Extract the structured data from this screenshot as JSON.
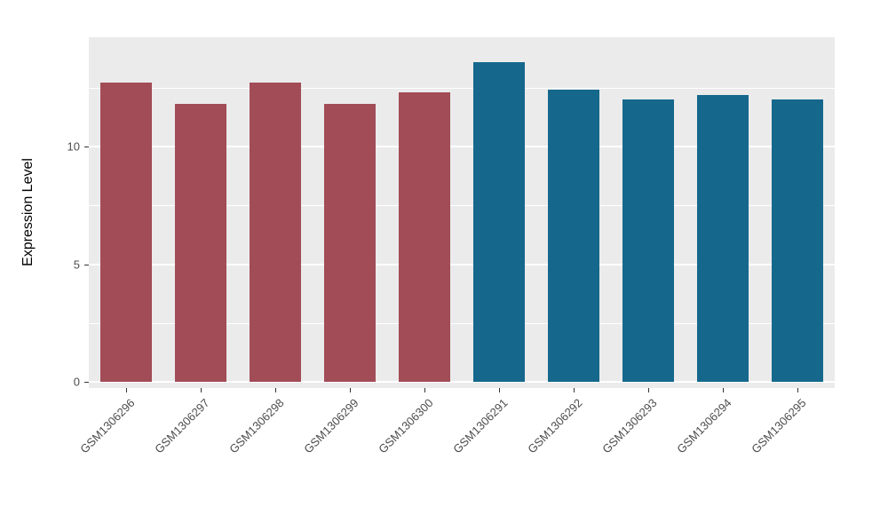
{
  "chart_data": {
    "type": "bar",
    "title": "",
    "xlabel": "",
    "ylabel": "Expression Level",
    "categories": [
      "GSM1306296",
      "GSM1306297",
      "GSM1306298",
      "GSM1306299",
      "GSM1306300",
      "GSM1306291",
      "GSM1306292",
      "GSM1306293",
      "GSM1306294",
      "GSM1306295"
    ],
    "values": [
      12.7,
      11.8,
      12.7,
      11.8,
      12.3,
      13.6,
      12.4,
      12.0,
      12.2,
      12.0
    ],
    "groups": [
      "left",
      "left",
      "left",
      "left",
      "left",
      "right",
      "right",
      "right",
      "right",
      "right"
    ],
    "colors": {
      "left": "#A24C57",
      "right": "#15688C"
    },
    "ylim": [
      0,
      14.6
    ],
    "y_ticks": [
      0,
      5,
      10
    ],
    "y_minor_ticks": [
      2.5,
      7.5,
      12.5
    ],
    "panel_background": "#EBEBEB",
    "grid_color": "#FFFFFF",
    "legend": "none",
    "grid": "on"
  }
}
